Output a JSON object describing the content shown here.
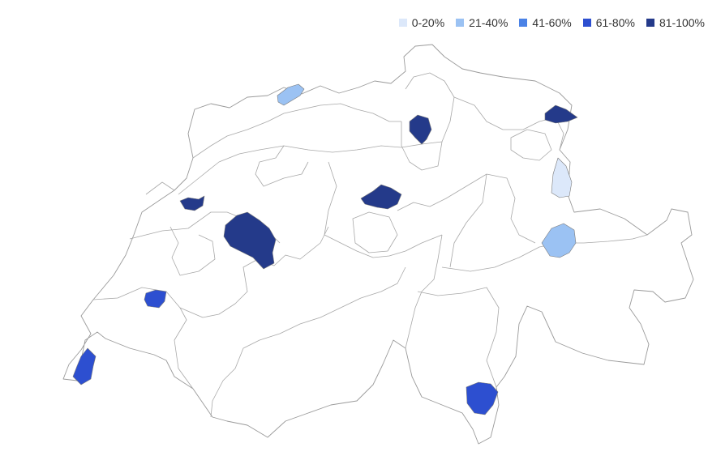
{
  "legend": {
    "items": [
      {
        "label": "0-20%",
        "color": "#dce8fa"
      },
      {
        "label": "21-40%",
        "color": "#9bc2f3"
      },
      {
        "label": "41-60%",
        "color": "#4a82e6"
      },
      {
        "label": "61-80%",
        "color": "#2d4fd0"
      },
      {
        "label": "81-100%",
        "color": "#243a8a"
      }
    ]
  },
  "map": {
    "country": "Switzerland",
    "highlighted_regions": [
      {
        "id": "basel",
        "bin": "21-40%"
      },
      {
        "id": "zurich",
        "bin": "81-100%"
      },
      {
        "id": "st-gallen",
        "bin": "81-100%"
      },
      {
        "id": "liechtenstein-border",
        "bin": "0-20%"
      },
      {
        "id": "lucerne",
        "bin": "81-100%"
      },
      {
        "id": "chur",
        "bin": "21-40%"
      },
      {
        "id": "biel",
        "bin": "81-100%"
      },
      {
        "id": "bern",
        "bin": "81-100%"
      },
      {
        "id": "lausanne",
        "bin": "61-80%"
      },
      {
        "id": "geneva",
        "bin": "61-80%"
      },
      {
        "id": "lugano",
        "bin": "61-80%"
      }
    ]
  }
}
